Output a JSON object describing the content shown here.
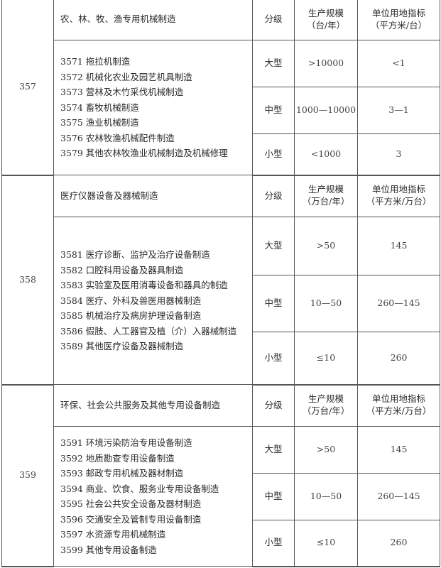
{
  "sections": [
    {
      "code": "357",
      "title": "农、林、牧、渔专用机械制造",
      "level_header": "分级",
      "scale_header": [
        "生产规模",
        "（台/年）"
      ],
      "index_header": [
        "单位用地指标",
        "（平方米/台）"
      ],
      "items": [
        "3571 拖拉机制造",
        "3572 机械化农业及园艺机具制造",
        "3573 营林及木竹采伐机械制造",
        "3574 畜牧机械制造",
        "3575 渔业机械制造",
        "3576 农林牧渔机械配件制造",
        "3579 其他农林牧渔业机械制造及机械修理"
      ],
      "rows": [
        {
          "level": "大型",
          "scale": ">10000",
          "index": "<1"
        },
        {
          "level": "中型",
          "scale": "1000—10000",
          "index": "3—1"
        },
        {
          "level": "小型",
          "scale": "<1000",
          "index": "3"
        }
      ]
    },
    {
      "code": "358",
      "title": "医疗仪器设备及器械制造",
      "level_header": "分级",
      "scale_header": [
        "生产规模",
        "（万台/年）"
      ],
      "index_header": [
        "单位用地指标",
        "（平方米/万台）"
      ],
      "items": [
        "3581 医疗诊断、监护及治疗设备制造",
        "3582 口腔科用设备及器具制造",
        "3583 实验室及医用消毒设备和器具的制造",
        "3584 医疗、外科及兽医用器械制造",
        "3585 机械治疗及病房护理设备制造",
        "3586 假肢、人工器官及植（介）入器械制造",
        "3589 其他医疗设备及器械制造"
      ],
      "rows": [
        {
          "level": "大型",
          "scale": ">50",
          "index": "145"
        },
        {
          "level": "中型",
          "scale": "10—50",
          "index": "260—145"
        },
        {
          "level": "小型",
          "scale": "≤10",
          "index": "260"
        }
      ]
    },
    {
      "code": "359",
      "title": "环保、社会公共服务及其他专用设备制造",
      "level_header": "分级",
      "scale_header": [
        "生产规模",
        "（万台/年）"
      ],
      "index_header": [
        "单位用地指标",
        "（平方米/万台）"
      ],
      "items": [
        "3591 环境污染防治专用设备制造",
        "3592 地质勘查专用设备制造",
        "3593 邮政专用机械及器材制造",
        "3594 商业、饮食、服务业专用设备制造",
        "3595 社会公共安全设备及器材制造",
        "3596 交通安全及管制专用设备制造",
        "3597 水资源专用机械制造",
        "3599 其他专用设备制造"
      ],
      "rows": [
        {
          "level": "大型",
          "scale": ">50",
          "index": "145"
        },
        {
          "level": "中型",
          "scale": "10—50",
          "index": "260—145"
        },
        {
          "level": "小型",
          "scale": "≤10",
          "index": "260"
        }
      ]
    }
  ]
}
